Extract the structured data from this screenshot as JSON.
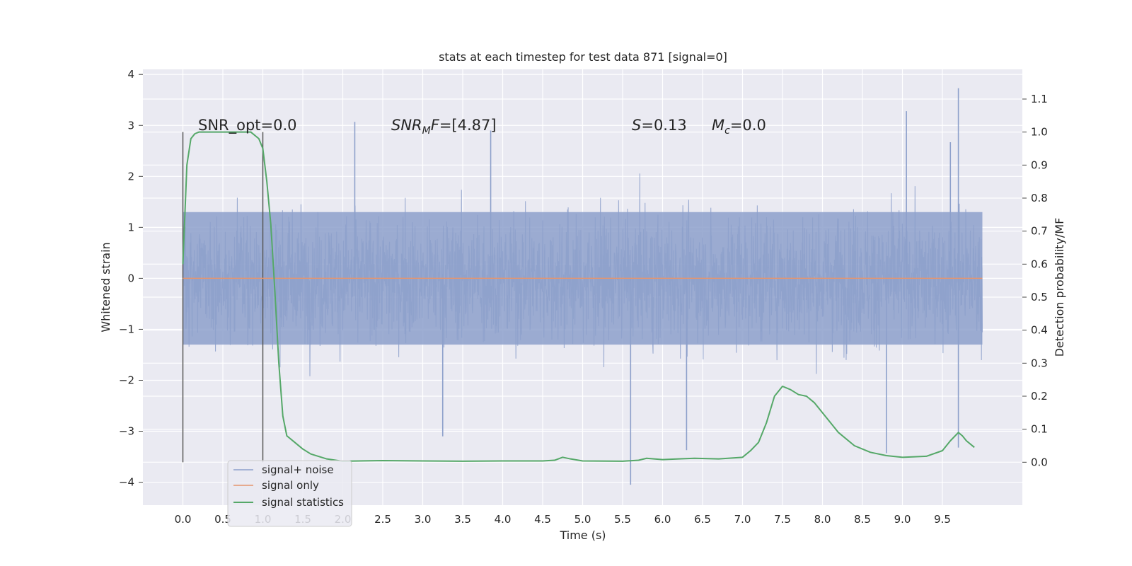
{
  "chart_data": {
    "type": "line",
    "title": "stats at each timestep for test data 871 [signal=0]",
    "xlabel": "Time (s)",
    "ylabel": "Whitened strain",
    "ylabel_right": "Detection probability/MF",
    "xlim": [
      -0.5,
      10.5
    ],
    "ylim": [
      -4.45,
      4.1
    ],
    "ylim_right": [
      -0.13,
      1.19
    ],
    "x_ticks": [
      "0.0",
      "0.5",
      "1.0",
      "1.5",
      "2.0",
      "2.5",
      "3.0",
      "3.5",
      "4.0",
      "4.5",
      "5.0",
      "5.5",
      "6.0",
      "6.5",
      "7.0",
      "7.5",
      "8.0",
      "8.5",
      "9.0",
      "9.5"
    ],
    "y_ticks": [
      "−4",
      "−3",
      "−2",
      "−1",
      "0",
      "1",
      "2",
      "3",
      "4"
    ],
    "y_right_ticks": [
      "0.0",
      "0.1",
      "0.2",
      "0.3",
      "0.4",
      "0.5",
      "0.6",
      "0.7",
      "0.8",
      "0.9",
      "1.0",
      "1.1"
    ],
    "grid": true,
    "legend_position": "lower-left",
    "annotations": {
      "snr_opt": "SNR_opt=0.0",
      "snr_mf_base": "SNR",
      "snr_mf_sub": "M",
      "snr_mf_tail": "F",
      "snr_mf_value": "=[4.87]",
      "s_label": "S",
      "s_value": "=0.13",
      "mc_label": "M",
      "mc_sub": "c",
      "mc_value": "=0.0"
    },
    "vertical_markers": [
      0.0,
      1.0
    ],
    "series": [
      {
        "name": "signal+ noise",
        "axis": "left",
        "color": "#8da0cb",
        "kind": "noise band",
        "x_range": [
          0.0,
          10.0
        ],
        "approx_band": [
          -1.3,
          1.3
        ],
        "notable_peaks": [
          [
            9.7,
            3.73
          ],
          [
            9.6,
            2.67
          ],
          [
            9.05,
            3.28
          ],
          [
            2.15,
            3.07
          ],
          [
            3.85,
            2.9
          ]
        ],
        "notable_troughs": [
          [
            5.6,
            -4.05
          ],
          [
            8.8,
            -3.43
          ],
          [
            9.7,
            -3.32
          ],
          [
            6.3,
            -3.37
          ],
          [
            3.25,
            -3.1
          ]
        ]
      },
      {
        "name": "signal only",
        "axis": "left",
        "color": "#e5956d",
        "x": [
          0.0,
          10.0
        ],
        "values": [
          0.0,
          0.0
        ]
      },
      {
        "name": "signal statistics",
        "axis": "right",
        "color": "#55a868",
        "x": [
          0.0,
          0.05,
          0.1,
          0.15,
          0.2,
          0.3,
          0.5,
          0.7,
          0.85,
          0.95,
          1.0,
          1.05,
          1.1,
          1.15,
          1.2,
          1.25,
          1.3,
          1.4,
          1.5,
          1.6,
          1.8,
          2.0,
          2.5,
          3.0,
          3.5,
          4.0,
          4.5,
          4.65,
          4.75,
          4.85,
          5.0,
          5.5,
          5.7,
          5.8,
          6.0,
          6.2,
          6.4,
          6.7,
          7.0,
          7.1,
          7.2,
          7.3,
          7.4,
          7.5,
          7.6,
          7.7,
          7.8,
          7.9,
          8.0,
          8.2,
          8.4,
          8.6,
          8.8,
          9.0,
          9.3,
          9.5,
          9.6,
          9.7,
          9.75,
          9.8,
          9.9
        ],
        "values": [
          0.6,
          0.9,
          0.98,
          0.995,
          1.0,
          1.0,
          1.0,
          1.0,
          1.0,
          0.98,
          0.95,
          0.85,
          0.72,
          0.52,
          0.3,
          0.14,
          0.08,
          0.06,
          0.04,
          0.025,
          0.01,
          0.003,
          0.005,
          0.004,
          0.003,
          0.004,
          0.004,
          0.006,
          0.015,
          0.01,
          0.004,
          0.003,
          0.006,
          0.012,
          0.008,
          0.01,
          0.012,
          0.01,
          0.015,
          0.035,
          0.06,
          0.12,
          0.2,
          0.23,
          0.22,
          0.205,
          0.2,
          0.18,
          0.15,
          0.09,
          0.05,
          0.03,
          0.02,
          0.015,
          0.018,
          0.035,
          0.065,
          0.09,
          0.08,
          0.065,
          0.045
        ]
      }
    ]
  }
}
